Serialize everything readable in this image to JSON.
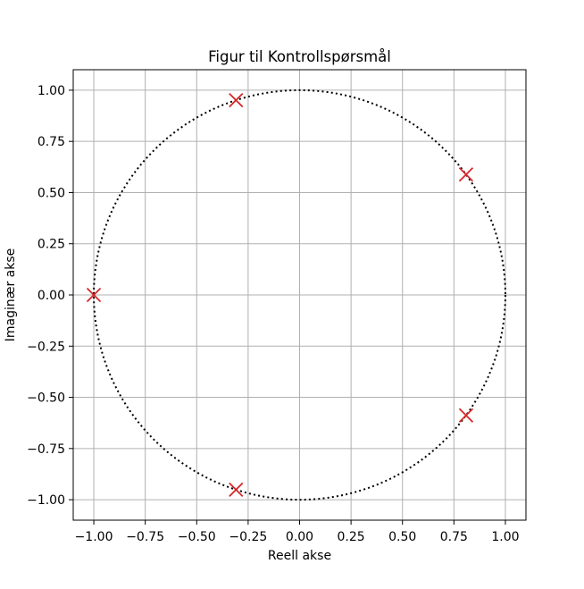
{
  "chart_data": {
    "type": "scatter",
    "title": "Figur til Kontrollspørsmål",
    "xlabel": "Reell akse",
    "ylabel": "Imaginær akse",
    "xlim": [
      -1.1,
      1.1
    ],
    "ylim": [
      -1.1,
      1.1
    ],
    "xticks": [
      -1.0,
      -0.75,
      -0.5,
      -0.25,
      0.0,
      0.25,
      0.5,
      0.75,
      1.0
    ],
    "yticks": [
      -1.0,
      -0.75,
      -0.5,
      -0.25,
      0.0,
      0.25,
      0.5,
      0.75,
      1.0
    ],
    "xtick_labels": [
      "−1.00",
      "−0.75",
      "−0.50",
      "−0.25",
      "0.00",
      "0.25",
      "0.50",
      "0.75",
      "1.00"
    ],
    "ytick_labels": [
      "−1.00",
      "−0.75",
      "−0.50",
      "−0.25",
      "0.00",
      "0.25",
      "0.50",
      "0.75",
      "1.00"
    ],
    "grid": true,
    "unit_circle": {
      "center": [
        0,
        0
      ],
      "radius": 1,
      "line_style": "dotted",
      "color": "#000000"
    },
    "points": [
      {
        "x": 0.809,
        "y": 0.588
      },
      {
        "x": -0.309,
        "y": 0.951
      },
      {
        "x": -1.0,
        "y": 0.0
      },
      {
        "x": -0.309,
        "y": -0.951
      },
      {
        "x": 0.809,
        "y": -0.588
      }
    ],
    "marker": "x",
    "marker_color": "#d62728",
    "grid_color": "#b0b0b0"
  }
}
